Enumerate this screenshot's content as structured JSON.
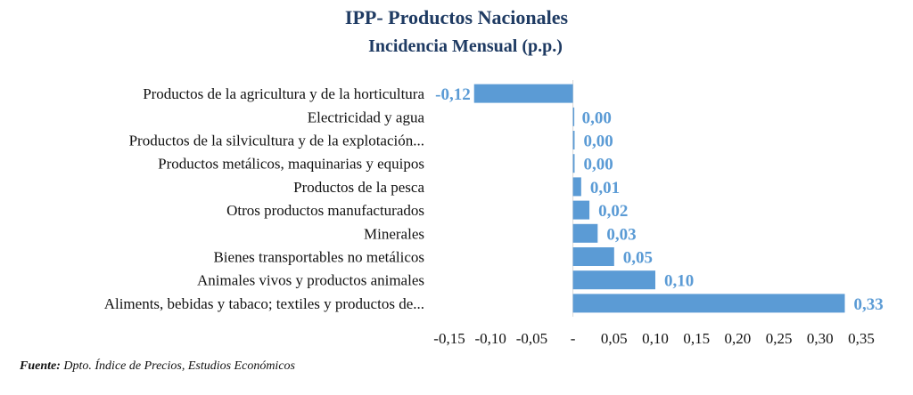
{
  "chart_data": {
    "type": "bar",
    "orientation": "horizontal",
    "title": "IPP- Productos Nacionales",
    "subtitle": "Incidencia Mensual (p.p.)",
    "categories": [
      "Productos de la agricultura y de la horticultura",
      "Electricidad y agua",
      "Productos de la silvicultura y de la explotación...",
      "Productos metálicos, maquinarias y equipos",
      "Productos de la pesca",
      "Otros productos manufacturados",
      "Minerales",
      "Bienes transportables no metálicos",
      "Animales vivos y productos animales",
      "Aliments, bebidas y tabaco; textiles y productos de..."
    ],
    "values": [
      -0.12,
      0.0,
      0.002,
      0.002,
      0.01,
      0.02,
      0.03,
      0.05,
      0.1,
      0.33
    ],
    "data_labels": [
      "-0,12",
      "0,00",
      "0,00",
      "0,00",
      "0,01",
      "0,02",
      "0,03",
      "0,05",
      "0,10",
      "0,33"
    ],
    "xlim": [
      -0.15,
      0.35
    ],
    "x_ticks": [
      -0.15,
      -0.1,
      -0.05,
      0,
      0.05,
      0.1,
      0.15,
      0.2,
      0.25,
      0.3,
      0.35
    ],
    "x_tick_labels": [
      "-0,15",
      "-0,10",
      "-0,05",
      "-",
      "0,05",
      "0,10",
      "0,15",
      "0,20",
      "0,25",
      "0,30",
      "0,35"
    ],
    "grid": false,
    "legend": "none",
    "bar_color": "#5b9bd5",
    "title_color": "#1f3b63"
  },
  "source": {
    "label": "Fuente:",
    "text": "Dpto. Índice de Precios, Estudios Económicos"
  }
}
